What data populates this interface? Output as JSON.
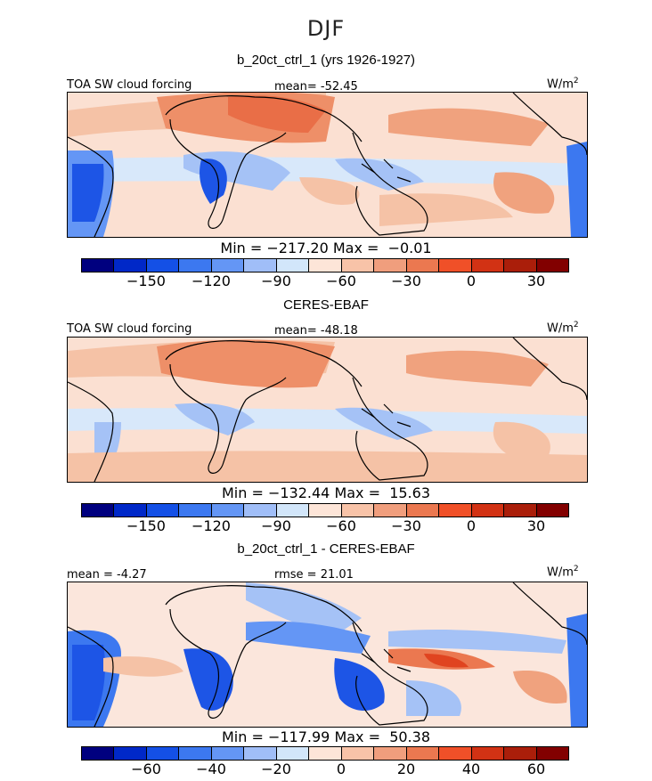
{
  "page_title": "DJF",
  "units_label": "W/m",
  "units_sup": "2",
  "colors": [
    "#00007f",
    "#0028c8",
    "#1450e6",
    "#3c78f0",
    "#6496f5",
    "#a0bef8",
    "#d2e6fa",
    "#fde5d8",
    "#f8c3a8",
    "#f09e7d",
    "#eb7850",
    "#f05028",
    "#d23214",
    "#aa1e0a",
    "#820000"
  ],
  "panels": [
    {
      "title": "b_20ct_ctrl_1 (yrs 1926-1927)",
      "left_label": "TOA SW cloud forcing",
      "center_label": "mean= -52.45",
      "stats": "Min = −217.20 Max =  −0.01",
      "ticks": [
        "−150",
        "−120",
        "−90",
        "−60",
        "−30",
        "0",
        "30"
      ]
    },
    {
      "title": "CERES-EBAF",
      "left_label": "TOA SW cloud forcing",
      "center_label": "mean= -48.18",
      "stats": "Min = −132.44 Max =  15.63",
      "ticks": [
        "−150",
        "−120",
        "−90",
        "−60",
        "−30",
        "0",
        "30"
      ]
    },
    {
      "title": "b_20ct_ctrl_1 - CERES-EBAF",
      "left_label": "mean =  -4.27",
      "center_label": "rmse =  21.01",
      "stats": "Min = −117.99 Max =  50.38",
      "ticks": [
        "−60",
        "−40",
        "−20",
        "0",
        "20",
        "40",
        "60"
      ]
    }
  ]
}
